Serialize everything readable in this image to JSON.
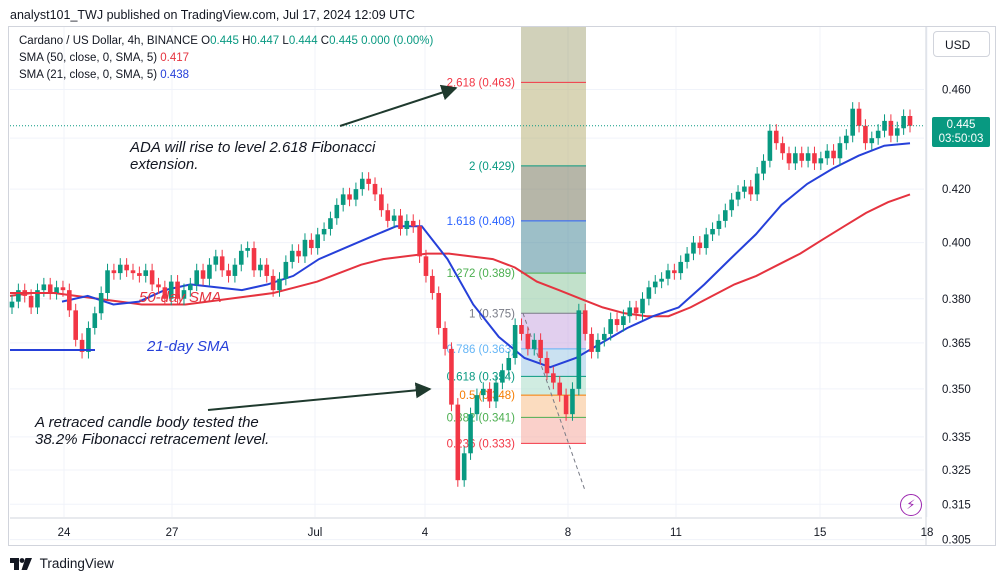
{
  "header": {
    "text": "analyst101_TWJ published on TradingView.com, Jul 17, 2024 12:09 UTC"
  },
  "legend": {
    "symbol": "Cardano / US Dollar, 4h, BINANCE",
    "o_key": "O",
    "o": "0.445",
    "h_key": "H",
    "h": "0.447",
    "l_key": "L",
    "l": "0.444",
    "c_key": "C",
    "c": "0.445",
    "change": "0.000 (0.00%)",
    "sma50_label": "SMA (50, close, 0, SMA, 5)",
    "sma50_value": "0.417",
    "sma21_label": "SMA (21, close, 0, SMA, 5)",
    "sma21_value": "0.438"
  },
  "currency_button": "USD",
  "price_tag": {
    "price": "0.445",
    "countdown": "03:50:03"
  },
  "annotations": {
    "rise_line1": "ADA will rise to level 2.618 Fibonacci",
    "rise_line2": "extension.",
    "retrace_line1": "A retraced candle body tested the",
    "retrace_line2": "38.2% Fibonacci retracement level.",
    "sma50": "50-day SMA",
    "sma21": "21-day SMA"
  },
  "footer": {
    "brand": "TradingView"
  },
  "colors": {
    "up": "#089981",
    "down": "#f23645",
    "sma50": "#e5333f",
    "sma21": "#2640d9",
    "text": "#131722",
    "grid": "#f0f3fa"
  },
  "icons": [
    "tradingview-logo-icon",
    "lightning-icon"
  ],
  "chart_data": {
    "type": "candlestick",
    "symbol": "ADAUSD",
    "timeframe": "4h",
    "x_ticks": [
      "24",
      "27",
      "Jul",
      "4",
      "8",
      "11",
      "15",
      "18"
    ],
    "y_ticks": [
      0.305,
      0.315,
      0.325,
      0.335,
      0.35,
      0.365,
      0.38,
      0.4,
      0.42,
      0.44,
      0.46
    ],
    "y_scale": "log",
    "ylim": [
      0.3035,
      0.487
    ],
    "last_price": 0.445,
    "candle_closes": [
      0.379,
      0.383,
      0.381,
      0.377,
      0.383,
      0.385,
      0.382,
      0.384,
      0.383,
      0.376,
      0.366,
      0.362,
      0.37,
      0.375,
      0.382,
      0.39,
      0.389,
      0.392,
      0.39,
      0.389,
      0.388,
      0.39,
      0.385,
      0.384,
      0.38,
      0.386,
      0.38,
      0.383,
      0.385,
      0.39,
      0.387,
      0.392,
      0.395,
      0.39,
      0.388,
      0.392,
      0.397,
      0.398,
      0.39,
      0.392,
      0.388,
      0.383,
      0.387,
      0.393,
      0.397,
      0.395,
      0.401,
      0.398,
      0.403,
      0.405,
      0.409,
      0.414,
      0.418,
      0.416,
      0.42,
      0.424,
      0.422,
      0.418,
      0.412,
      0.408,
      0.41,
      0.405,
      0.408,
      0.406,
      0.395,
      0.388,
      0.382,
      0.37,
      0.363,
      0.345,
      0.322,
      0.33,
      0.342,
      0.348,
      0.35,
      0.346,
      0.352,
      0.356,
      0.36,
      0.371,
      0.368,
      0.363,
      0.366,
      0.36,
      0.355,
      0.352,
      0.348,
      0.342,
      0.35,
      0.376,
      0.368,
      0.362,
      0.366,
      0.368,
      0.373,
      0.371,
      0.374,
      0.377,
      0.375,
      0.38,
      0.384,
      0.386,
      0.387,
      0.39,
      0.389,
      0.393,
      0.396,
      0.4,
      0.398,
      0.403,
      0.405,
      0.408,
      0.412,
      0.416,
      0.419,
      0.421,
      0.418,
      0.426,
      0.431,
      0.443,
      0.438,
      0.434,
      0.43,
      0.434,
      0.431,
      0.434,
      0.43,
      0.432,
      0.435,
      0.432,
      0.438,
      0.441,
      0.452,
      0.445,
      0.438,
      0.44,
      0.443,
      0.447,
      0.441,
      0.444,
      0.449,
      0.445
    ],
    "series": [
      {
        "name": "50-day SMA",
        "values": [
          0.381,
          0.382,
          0.382,
          0.381,
          0.38,
          0.379,
          0.378,
          0.378,
          0.378,
          0.379,
          0.38,
          0.381,
          0.382,
          0.384,
          0.386,
          0.389,
          0.392,
          0.394,
          0.395,
          0.396,
          0.396,
          0.395,
          0.394,
          0.391,
          0.386,
          0.383,
          0.38,
          0.377,
          0.375,
          0.374,
          0.374,
          0.377,
          0.381,
          0.385,
          0.388,
          0.392,
          0.396,
          0.401,
          0.406,
          0.411,
          0.415,
          0.418
        ]
      },
      {
        "name": "21-day SMA",
        "values": [
          0.379,
          0.381,
          0.378,
          0.379,
          0.383,
          0.385,
          0.384,
          0.383,
          0.385,
          0.388,
          0.394,
          0.398,
          0.402,
          0.406,
          0.406,
          0.394,
          0.378,
          0.367,
          0.36,
          0.357,
          0.36,
          0.365,
          0.37,
          0.374,
          0.377,
          0.385,
          0.394,
          0.403,
          0.414,
          0.422,
          0.428,
          0.433,
          0.437,
          0.438
        ]
      }
    ],
    "fibonacci": {
      "levels": [
        {
          "label": "2.618 (0.463)",
          "value": 0.463,
          "color": "#f23645"
        },
        {
          "label": "2 (0.429)",
          "value": 0.429,
          "color": "#089981"
        },
        {
          "label": "1.618 (0.408)",
          "value": 0.408,
          "color": "#2962ff"
        },
        {
          "label": "1.272 (0.389)",
          "value": 0.389,
          "color": "#4caf50"
        },
        {
          "label": "1 (0.375)",
          "value": 0.375,
          "color": "#787b86"
        },
        {
          "label": "0.786 (0.363)",
          "value": 0.363,
          "color": "#64b5f6"
        },
        {
          "label": "0.618 (0.354)",
          "value": 0.354,
          "color": "#089981"
        },
        {
          "label": "0.5 (0.348)",
          "value": 0.348,
          "color": "#f57c00"
        },
        {
          "label": "0.382 (0.341)",
          "value": 0.341,
          "color": "#4caf50"
        },
        {
          "label": "0.236 (0.333)",
          "value": 0.333,
          "color": "#f23645"
        }
      ]
    }
  }
}
